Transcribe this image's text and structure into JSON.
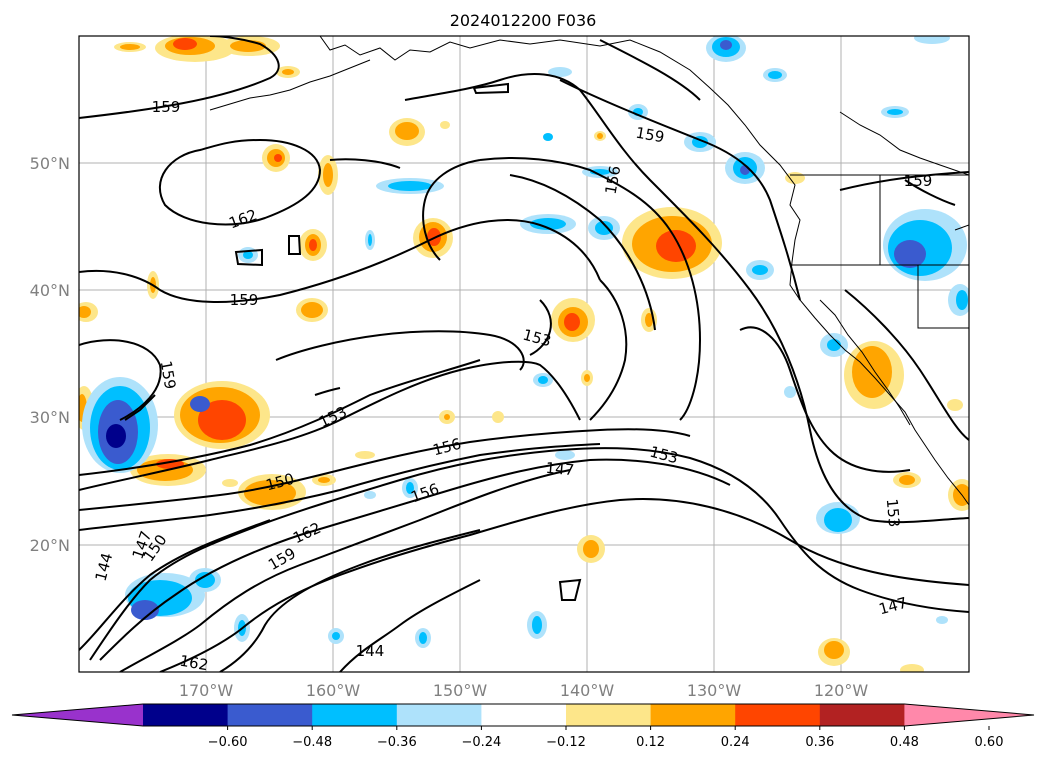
{
  "title": "2024012200 F036",
  "lat_labels": [
    "50°N",
    "40°N",
    "30°N",
    "20°N"
  ],
  "lon_labels": [
    "170°W",
    "160°W",
    "150°W",
    "140°W",
    "130°W",
    "120°W"
  ],
  "colorbar": {
    "colors": [
      "#9932cc",
      "#00008b",
      "#3a5bcf",
      "#00bfff",
      "#aee2fb",
      "#ffffff",
      "#fde68a",
      "#ffa500",
      "#ff4500",
      "#b22222",
      "#ff88aa"
    ],
    "tick_labels": [
      "−0.60",
      "−0.48",
      "−0.36",
      "−0.24",
      "−0.12",
      "0.12",
      "0.24",
      "0.36",
      "0.48",
      "0.60"
    ]
  },
  "contour_labels": [
    "159",
    "162",
    "159",
    "156",
    "159",
    "153",
    "159",
    "153",
    "156",
    "150",
    "147",
    "153",
    "156",
    "147",
    "150",
    "162",
    "159",
    "144",
    "162",
    "144",
    "153",
    "147",
    "159"
  ]
}
